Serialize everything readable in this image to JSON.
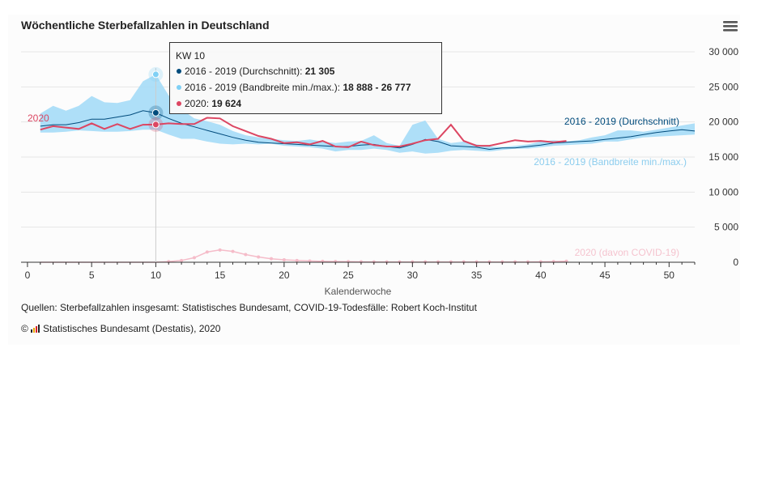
{
  "chart_data": {
    "type": "line",
    "title": "Wöchentliche Sterbefallzahlen in Deutschland",
    "xlabel": "Kalenderwoche",
    "ylabel": "",
    "xlim": [
      -0.5,
      52
    ],
    "ylim": [
      0,
      30000
    ],
    "x_ticks": [
      0,
      5,
      10,
      15,
      20,
      25,
      30,
      35,
      40,
      45,
      50
    ],
    "y_ticks": [
      0,
      5000,
      10000,
      15000,
      20000,
      25000,
      30000
    ],
    "y_tick_labels": [
      "0",
      "5 000",
      "10 000",
      "15 000",
      "20 000",
      "25 000",
      "30 000"
    ],
    "series": [
      {
        "name": "2016 - 2019 (Bandbreite min./max.)",
        "type": "arearange",
        "color": "#a5dcf7",
        "x": [
          1,
          2,
          3,
          4,
          5,
          6,
          7,
          8,
          9,
          10,
          11,
          12,
          13,
          14,
          15,
          16,
          17,
          18,
          19,
          20,
          21,
          22,
          23,
          24,
          25,
          26,
          27,
          28,
          29,
          30,
          31,
          32,
          33,
          34,
          35,
          36,
          37,
          38,
          39,
          40,
          41,
          42,
          43,
          44,
          45,
          46,
          47,
          48,
          49,
          50,
          51,
          52
        ],
        "low": [
          18500,
          18500,
          18600,
          18800,
          18700,
          18600,
          18600,
          18700,
          18900,
          18888,
          18200,
          17600,
          17600,
          17200,
          16900,
          16800,
          16900,
          16800,
          16900,
          16600,
          16500,
          16400,
          16200,
          15800,
          16000,
          16000,
          16200,
          16000,
          15600,
          15800,
          15500,
          15600,
          15900,
          16000,
          15900,
          15800,
          16000,
          16200,
          16200,
          16400,
          16600,
          16700,
          16800,
          16900,
          17200,
          17200,
          17500,
          17800,
          17900,
          18000,
          18100,
          18200
        ],
        "high": [
          21200,
          22300,
          21600,
          22300,
          23700,
          22800,
          22700,
          23100,
          25800,
          26777,
          23800,
          21800,
          20500,
          20100,
          19600,
          18700,
          18100,
          17800,
          17600,
          17400,
          17300,
          17500,
          17200,
          17000,
          17200,
          17300,
          18100,
          17000,
          16600,
          19600,
          20200,
          17600,
          17000,
          17200,
          16800,
          16500,
          16400,
          16600,
          16800,
          17200,
          17400,
          17200,
          17400,
          17800,
          18100,
          18800,
          18800,
          18600,
          18900,
          19200,
          19500,
          19800
        ]
      },
      {
        "name": "2016 - 2019 (Durchschnitt)",
        "type": "line",
        "color": "#004b7c",
        "x": [
          1,
          2,
          3,
          4,
          5,
          6,
          7,
          8,
          9,
          10,
          11,
          12,
          13,
          14,
          15,
          16,
          17,
          18,
          19,
          20,
          21,
          22,
          23,
          24,
          25,
          26,
          27,
          28,
          29,
          30,
          31,
          32,
          33,
          34,
          35,
          36,
          37,
          38,
          39,
          40,
          41,
          42,
          43,
          44,
          45,
          46,
          47,
          48,
          49,
          50,
          51,
          52
        ],
        "values": [
          19400,
          19600,
          19600,
          19900,
          20400,
          20400,
          20700,
          21000,
          21600,
          21305,
          20500,
          19800,
          19300,
          18800,
          18300,
          17800,
          17400,
          17100,
          17000,
          16900,
          16800,
          16700,
          16600,
          16500,
          16500,
          16700,
          16800,
          16500,
          16300,
          16800,
          17500,
          17200,
          16600,
          16500,
          16400,
          16100,
          16300,
          16300,
          16500,
          16700,
          17000,
          17100,
          17200,
          17300,
          17500,
          17700,
          17900,
          18200,
          18500,
          18700,
          18900,
          18700
        ]
      },
      {
        "name": "2020",
        "type": "line",
        "color": "#dc4662",
        "x": [
          1,
          2,
          3,
          4,
          5,
          6,
          7,
          8,
          9,
          10,
          11,
          12,
          13,
          14,
          15,
          16,
          17,
          18,
          19,
          20,
          21,
          22,
          23,
          24,
          25,
          26,
          27,
          28,
          29,
          30,
          31,
          32,
          33,
          34,
          35,
          36,
          37,
          38,
          39,
          40,
          41,
          42
        ],
        "values": [
          18900,
          19400,
          19200,
          19000,
          19800,
          19000,
          19700,
          19000,
          19600,
          19624,
          19800,
          19700,
          19700,
          20600,
          20500,
          19400,
          18700,
          18000,
          17600,
          17000,
          17100,
          16800,
          17300,
          16500,
          16400,
          17200,
          16700,
          16500,
          16500,
          16900,
          17400,
          17600,
          19600,
          17300,
          16600,
          16600,
          17000,
          17400,
          17200,
          17300,
          17100,
          17300
        ]
      },
      {
        "name": "2020 (davon COVID-19)",
        "type": "line",
        "color": "#f5bcc9",
        "x": [
          1,
          2,
          3,
          4,
          5,
          6,
          7,
          8,
          9,
          10,
          11,
          12,
          13,
          14,
          15,
          16,
          17,
          18,
          19,
          20,
          21,
          22,
          23,
          24,
          25,
          26,
          27,
          28,
          29,
          30,
          31,
          32,
          33,
          34,
          35,
          36,
          37,
          38,
          39,
          40,
          41,
          42
        ],
        "values": [
          0,
          0,
          0,
          0,
          0,
          0,
          0,
          0,
          0,
          0,
          80,
          250,
          650,
          1450,
          1750,
          1550,
          1100,
          750,
          500,
          350,
          250,
          180,
          130,
          100,
          80,
          60,
          50,
          40,
          40,
          40,
          40,
          40,
          40,
          40,
          40,
          40,
          40,
          40,
          40,
          60,
          90,
          150
        ]
      }
    ],
    "series_labels": {
      "durchschnitt": "2016 - 2019 (Durchschnitt)",
      "bandbreite": "2016 - 2019 (Bandbreite min./max.)",
      "y2020": "2020",
      "covid": "2020 (davon COVID-19)"
    },
    "tooltip": {
      "header": "KW 10",
      "week": 10,
      "rows": [
        {
          "label": "2016 - 2019 (Durchschnitt): ",
          "value": "21 305",
          "color": "#004b7c"
        },
        {
          "label": "2016 - 2019 (Bandbreite min./max.): ",
          "value": "18 888 - 26 777",
          "color": "#7fd0f5"
        },
        {
          "label": "2020: ",
          "value": "19 624",
          "color": "#dc4662"
        }
      ],
      "markers": [
        {
          "series": "high",
          "value": 26777,
          "color": "#7fd0f5"
        },
        {
          "series": "avg",
          "value": 21305,
          "color": "#004b7c"
        },
        {
          "series": "2020",
          "value": 19624,
          "color": "#dc4662"
        }
      ]
    },
    "credits": {
      "sources": "Quellen: Sterbefallzahlen insgesamt: Statistisches Bundesamt, COVID-19-Todesfälle: Robert Koch-Institut",
      "copyright_symbol": "©",
      "copyright": "Statistisches Bundesamt (Destatis), 2020"
    }
  },
  "colors": {
    "band": "#a5dcf7",
    "avg": "#004b7c",
    "y2020": "#dc4662",
    "covid": "#f5bcc9",
    "grid": "#e6e6e6",
    "axis": "#333333"
  },
  "menu_icon": "hamburger-menu-icon"
}
